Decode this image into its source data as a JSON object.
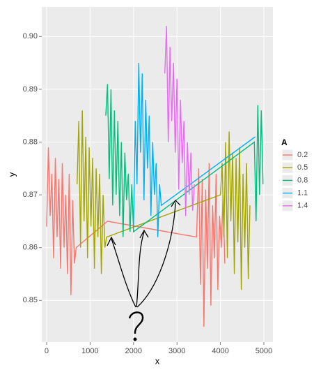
{
  "chart_data": {
    "type": "line",
    "x_label": "x",
    "y_label": "y",
    "legend_title": "A",
    "xlim": [
      -112,
      5208
    ],
    "xticks": [
      0,
      1000,
      2000,
      3000,
      4000,
      5000
    ],
    "ylim": [
      0.8421,
      0.9056
    ],
    "yticks": [
      0.85,
      0.86,
      0.87,
      0.88,
      0.89,
      {
        "value": 0.9,
        "label": "0.90"
      }
    ],
    "grid": true,
    "legend_position": "right",
    "series": [
      {
        "name": "0.2",
        "color": "#F8766D",
        "x": [
          0,
          40,
          80,
          120,
          160,
          200,
          240,
          280,
          320,
          360,
          400,
          440,
          480,
          520,
          560,
          600,
          640,
          680,
          1400,
          3450,
          3500,
          3540,
          3580,
          3620,
          3660,
          3700,
          3740,
          3780,
          3820,
          3860,
          3900,
          3940,
          3980,
          4020,
          4060,
          4100
        ],
        "values": [
          0.864,
          0.879,
          0.866,
          0.874,
          0.858,
          0.877,
          0.862,
          0.873,
          0.856,
          0.876,
          0.86,
          0.87,
          0.855,
          0.874,
          0.851,
          0.869,
          0.857,
          0.86,
          0.865,
          0.862,
          0.875,
          0.853,
          0.873,
          0.845,
          0.871,
          0.856,
          0.876,
          0.849,
          0.868,
          0.858,
          0.874,
          0.852,
          0.866,
          0.86,
          0.87,
          0.857
        ]
      },
      {
        "name": "0.5",
        "color": "#A3A500",
        "x": [
          700,
          740,
          780,
          820,
          860,
          900,
          940,
          980,
          1020,
          1060,
          1100,
          1140,
          1180,
          1220,
          1260,
          1300,
          1340,
          1380,
          4000,
          4040,
          4080,
          4120,
          4160,
          4200,
          4240,
          4280,
          4320,
          4360,
          4400,
          4440,
          4480,
          4520,
          4560,
          4600,
          4640,
          4680
        ],
        "values": [
          0.872,
          0.884,
          0.86,
          0.886,
          0.865,
          0.881,
          0.858,
          0.879,
          0.864,
          0.877,
          0.856,
          0.875,
          0.862,
          0.874,
          0.855,
          0.87,
          0.86,
          0.862,
          0.87,
          0.876,
          0.862,
          0.88,
          0.858,
          0.882,
          0.865,
          0.878,
          0.855,
          0.877,
          0.861,
          0.879,
          0.852,
          0.874,
          0.86,
          0.876,
          0.854,
          0.868
        ]
      },
      {
        "name": "0.8",
        "color": "#00BF7D",
        "x": [
          1360,
          1400,
          1440,
          1480,
          1520,
          1560,
          1600,
          1640,
          1680,
          1720,
          1760,
          1800,
          1840,
          1880,
          1920,
          1960,
          2000,
          4780,
          4820,
          4860,
          4900,
          4940,
          4980
        ],
        "values": [
          0.885,
          0.891,
          0.873,
          0.89,
          0.868,
          0.886,
          0.87,
          0.884,
          0.866,
          0.88,
          0.862,
          0.878,
          0.869,
          0.874,
          0.863,
          0.872,
          0.863,
          0.88,
          0.865,
          0.887,
          0.87,
          0.886,
          0.872
        ]
      },
      {
        "name": "1.1",
        "color": "#00B0F6",
        "x": [
          2000,
          2040,
          2080,
          2120,
          2160,
          2200,
          2240,
          2280,
          2320,
          2360,
          2400,
          2440,
          2480,
          2520,
          2560,
          2600,
          2640,
          4800
        ],
        "values": [
          0.864,
          0.884,
          0.872,
          0.895,
          0.878,
          0.893,
          0.869,
          0.888,
          0.875,
          0.885,
          0.866,
          0.88,
          0.87,
          0.876,
          0.862,
          0.872,
          0.868,
          0.881
        ]
      },
      {
        "name": "1.4",
        "color": "#E76BF3",
        "x": [
          2720,
          2760,
          2800,
          2840,
          2880,
          2920,
          2960,
          3000,
          3040,
          3080,
          3120,
          3160,
          3200,
          3240,
          3280,
          3320,
          3360,
          3400
        ],
        "values": [
          0.893,
          0.902,
          0.88,
          0.898,
          0.884,
          0.895,
          0.878,
          0.892,
          0.871,
          0.888,
          0.876,
          0.884,
          0.866,
          0.88,
          0.87,
          0.878,
          0.867,
          0.872
        ]
      }
    ]
  }
}
